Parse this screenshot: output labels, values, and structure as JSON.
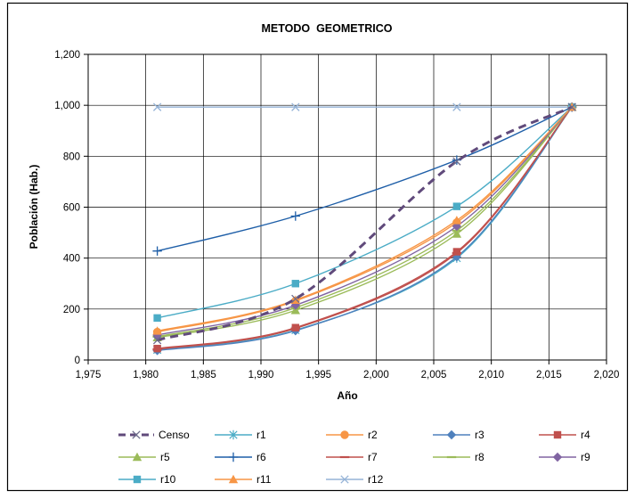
{
  "chart_data": {
    "type": "line",
    "title": "METODO  GEOMETRICO",
    "xlabel": "Año",
    "ylabel": "Población (Hab.)",
    "xlim": [
      1975,
      2020
    ],
    "ylim": [
      0,
      1200
    ],
    "x_ticks": [
      1975,
      1980,
      1985,
      1990,
      1995,
      2000,
      2005,
      2010,
      2015,
      2020
    ],
    "y_ticks": [
      0,
      200,
      400,
      600,
      800,
      1000,
      1200
    ],
    "x_tick_labels": [
      "1,975",
      "1,980",
      "1,985",
      "1,990",
      "1,995",
      "2,000",
      "2,005",
      "2,010",
      "2,015",
      "2,020"
    ],
    "y_tick_labels": [
      "0",
      "200",
      "400",
      "600",
      "800",
      "1,000",
      "1,200"
    ],
    "grid": true,
    "legend_position": "bottom",
    "x": [
      1981,
      1993,
      2007,
      2017
    ],
    "series": [
      {
        "name": "Censo",
        "color": "#604A7B",
        "marker": "x",
        "dashed": true,
        "values": [
          78,
          240,
          780,
          993
        ]
      },
      {
        "name": "r1",
        "color": "#4BACC6",
        "marker": "asterisk",
        "dashed": false,
        "values": [
          40,
          117,
          400,
          993
        ]
      },
      {
        "name": "r2",
        "color": "#F79646",
        "marker": "circle",
        "dashed": false,
        "values": [
          110,
          232,
          540,
          993
        ]
      },
      {
        "name": "r3",
        "color": "#4F81BD",
        "marker": "diamond",
        "dashed": false,
        "values": [
          37,
          115,
          405,
          993
        ]
      },
      {
        "name": "r4",
        "color": "#C0504D",
        "marker": "square",
        "dashed": false,
        "values": [
          45,
          127,
          425,
          993
        ]
      },
      {
        "name": "r5",
        "color": "#9BBB59",
        "marker": "triangle",
        "dashed": false,
        "values": [
          88,
          195,
          495,
          993
        ]
      },
      {
        "name": "r6",
        "color": "#1F5FA8",
        "marker": "plus",
        "dashed": false,
        "values": [
          428,
          565,
          785,
          993
        ]
      },
      {
        "name": "r7",
        "color": "#C0504D",
        "marker": "dash",
        "dashed": false,
        "values": [
          42,
          124,
          420,
          993
        ]
      },
      {
        "name": "r8",
        "color": "#9BBB59",
        "marker": "dash",
        "dashed": false,
        "values": [
          92,
          205,
          508,
          993
        ]
      },
      {
        "name": "r9",
        "color": "#8064A2",
        "marker": "diamond",
        "dashed": false,
        "values": [
          98,
          215,
          525,
          993
        ]
      },
      {
        "name": "r10",
        "color": "#4BACC6",
        "marker": "square",
        "dashed": false,
        "values": [
          165,
          300,
          603,
          993
        ]
      },
      {
        "name": "r11",
        "color": "#F79646",
        "marker": "triangle",
        "dashed": false,
        "values": [
          114,
          235,
          548,
          993
        ]
      },
      {
        "name": "r12",
        "color": "#95B3D7",
        "marker": "x",
        "dashed": false,
        "values": [
          993,
          993,
          993,
          993
        ]
      }
    ]
  }
}
